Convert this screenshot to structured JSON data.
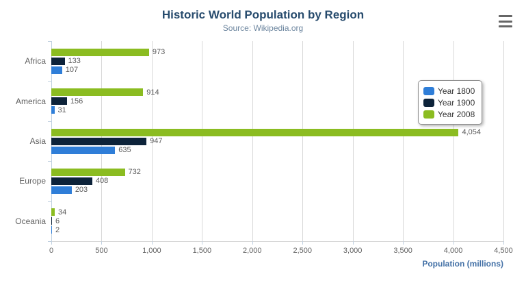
{
  "header": {
    "title": "Historic World Population by Region",
    "subtitle": "Source: Wikipedia.org",
    "menu_icon": "hamburger-icon"
  },
  "chart_data": {
    "type": "bar",
    "orientation": "horizontal",
    "title": "Historic World Population by Region",
    "subtitle": "Source: Wikipedia.org",
    "categories": [
      "Africa",
      "America",
      "Asia",
      "Europe",
      "Oceania"
    ],
    "series": [
      {
        "name": "Year 1800",
        "color": "#2f7ed8",
        "values": [
          107,
          31,
          635,
          203,
          2
        ]
      },
      {
        "name": "Year 1900",
        "color": "#0d233a",
        "values": [
          133,
          156,
          947,
          408,
          6
        ]
      },
      {
        "name": "Year 2008",
        "color": "#8bbc21",
        "values": [
          973,
          914,
          4054,
          732,
          34
        ]
      }
    ],
    "bar_order_top_to_bottom": [
      "Year 2008",
      "Year 1900",
      "Year 1800"
    ],
    "xlabel": "Population (millions)",
    "ylabel": "",
    "xlim": [
      0,
      4500
    ],
    "tick_interval": 500,
    "tick_labels": [
      "0",
      "500",
      "1,000",
      "1,500",
      "2,000",
      "2,500",
      "3,000",
      "3,500",
      "4,000",
      "4,500"
    ],
    "grid": true,
    "legend_position": "right",
    "data_labels": true
  },
  "colors": {
    "title": "#274b6d",
    "subtitle": "#6d869f",
    "gridline": "#d8d8d8",
    "axis_line": "#c0d0e0",
    "tick_label": "#606060",
    "data_label": "#5a5a5a",
    "axis_title": "#4572a7",
    "menu_icon": "#666666"
  }
}
